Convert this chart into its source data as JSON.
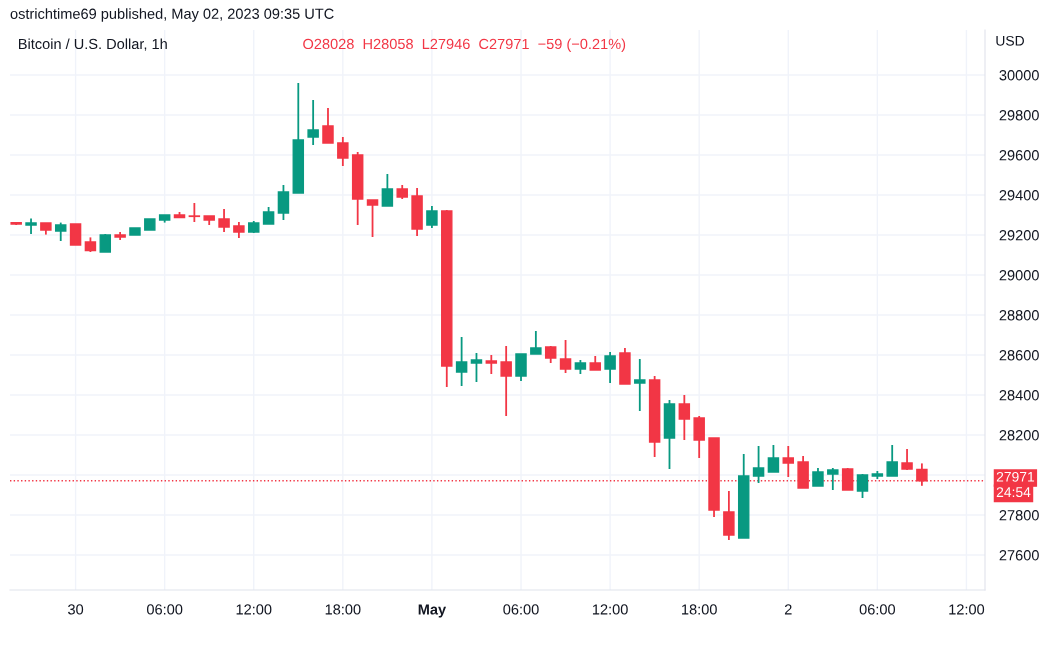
{
  "chart_data": {
    "type": "candlestick",
    "title": "Bitcoin / U.S. Dollar, 1h",
    "subtitle": "O28028  H28058  L27946  C27971  −59 (−0.21%)",
    "ylabel": "USD",
    "annotations": [
      "ostrichtime69 published, May 02, 2023 09:35 UTC",
      "24:54"
    ],
    "x": [
      "2023-04-29T20:00",
      "2023-04-29T21:00",
      "2023-04-29T22:00",
      "2023-04-29T23:00",
      "2023-04-30T00:00",
      "2023-04-30T01:00",
      "2023-04-30T02:00",
      "2023-04-30T03:00",
      "2023-04-30T04:00",
      "2023-04-30T05:00",
      "2023-04-30T06:00",
      "2023-04-30T07:00",
      "2023-04-30T08:00",
      "2023-04-30T09:00",
      "2023-04-30T10:00",
      "2023-04-30T11:00",
      "2023-04-30T12:00",
      "2023-04-30T13:00",
      "2023-04-30T14:00",
      "2023-04-30T15:00",
      "2023-04-30T16:00",
      "2023-04-30T17:00",
      "2023-04-30T18:00",
      "2023-04-30T19:00",
      "2023-04-30T20:00",
      "2023-04-30T21:00",
      "2023-04-30T22:00",
      "2023-04-30T23:00",
      "2023-05-01T00:00",
      "2023-05-01T01:00",
      "2023-05-01T02:00",
      "2023-05-01T03:00",
      "2023-05-01T04:00",
      "2023-05-01T05:00",
      "2023-05-01T06:00",
      "2023-05-01T07:00",
      "2023-05-01T08:00",
      "2023-05-01T09:00",
      "2023-05-01T10:00",
      "2023-05-01T11:00",
      "2023-05-01T12:00",
      "2023-05-01T13:00",
      "2023-05-01T14:00",
      "2023-05-01T15:00",
      "2023-05-01T16:00",
      "2023-05-01T17:00",
      "2023-05-01T18:00",
      "2023-05-01T19:00",
      "2023-05-01T20:00",
      "2023-05-01T21:00",
      "2023-05-01T22:00",
      "2023-05-01T23:00",
      "2023-05-02T00:00",
      "2023-05-02T01:00",
      "2023-05-02T02:00",
      "2023-05-02T03:00",
      "2023-05-02T04:00",
      "2023-05-02T05:00",
      "2023-05-02T06:00",
      "2023-05-02T07:00",
      "2023-05-02T08:00",
      "2023-05-02T09:00"
    ],
    "ohlc": [
      [
        29262,
        29265,
        29250,
        29255
      ],
      [
        29250,
        29283,
        29205,
        29260
      ],
      [
        29260,
        29260,
        29202,
        29225
      ],
      [
        29220,
        29262,
        29170,
        29250
      ],
      [
        29255,
        29255,
        29150,
        29150
      ],
      [
        29165,
        29188,
        29115,
        29122
      ],
      [
        29115,
        29205,
        29115,
        29200
      ],
      [
        29200,
        29215,
        29175,
        29190
      ],
      [
        29200,
        29235,
        29200,
        29235
      ],
      [
        29225,
        29280,
        29225,
        29280
      ],
      [
        29275,
        29300,
        29262,
        29300
      ],
      [
        29300,
        29315,
        29287,
        29287
      ],
      [
        29295,
        29360,
        29265,
        29293
      ],
      [
        29295,
        29295,
        29250,
        29275
      ],
      [
        29280,
        29330,
        29215,
        29240
      ],
      [
        29245,
        29265,
        29185,
        29215
      ],
      [
        29215,
        29270,
        29210,
        29260
      ],
      [
        29255,
        29340,
        29255,
        29315
      ],
      [
        29310,
        29450,
        29275,
        29415
      ],
      [
        29410,
        29960,
        29410,
        29675
      ],
      [
        29690,
        29875,
        29650,
        29725
      ],
      [
        29745,
        29835,
        29660,
        29660
      ],
      [
        29660,
        29690,
        29545,
        29585
      ],
      [
        29600,
        29615,
        29250,
        29380
      ],
      [
        29375,
        29375,
        29190,
        29350
      ],
      [
        29345,
        29505,
        29345,
        29430
      ],
      [
        29430,
        29450,
        29380,
        29390
      ],
      [
        29395,
        29435,
        29195,
        29230
      ],
      [
        29250,
        29345,
        29235,
        29320
      ],
      [
        29320,
        29325,
        28440,
        28545
      ],
      [
        28515,
        28690,
        28445,
        28565
      ],
      [
        28560,
        28610,
        28465,
        28575
      ],
      [
        28570,
        28600,
        28505,
        28560
      ],
      [
        28565,
        28645,
        28295,
        28495
      ],
      [
        28495,
        28605,
        28470,
        28605
      ],
      [
        28605,
        28720,
        28605,
        28635
      ],
      [
        28640,
        28645,
        28560,
        28585
      ],
      [
        28580,
        28675,
        28510,
        28530
      ],
      [
        28530,
        28575,
        28505,
        28560
      ],
      [
        28560,
        28595,
        28525,
        28525
      ],
      [
        28530,
        28615,
        28460,
        28595
      ],
      [
        28610,
        28635,
        28455,
        28455
      ],
      [
        28460,
        28580,
        28320,
        28475
      ],
      [
        28475,
        28495,
        28090,
        28165
      ],
      [
        28185,
        28375,
        28030,
        28355
      ],
      [
        28355,
        28400,
        28175,
        28280
      ],
      [
        28285,
        28295,
        28085,
        28175
      ],
      [
        28185,
        28185,
        27790,
        27825
      ],
      [
        27815,
        27920,
        27675,
        27700
      ],
      [
        27685,
        28105,
        27685,
        27995
      ],
      [
        27995,
        28145,
        27960,
        28035
      ],
      [
        28015,
        28150,
        28015,
        28085
      ],
      [
        28085,
        28145,
        27990,
        28060
      ],
      [
        28065,
        28095,
        27935,
        27935
      ],
      [
        27945,
        28035,
        27945,
        28015
      ],
      [
        28005,
        28035,
        27925,
        28025
      ],
      [
        28030,
        28035,
        27925,
        27925
      ],
      [
        27920,
        28005,
        27885,
        28000
      ],
      [
        27995,
        28020,
        27980,
        28005
      ],
      [
        27995,
        28150,
        27995,
        28065
      ],
      [
        28060,
        28130,
        28025,
        28030
      ],
      [
        28028,
        28058,
        27946,
        27971
      ]
    ],
    "colors": [
      "#f23645",
      "#089981",
      "#f23645",
      "#089981",
      "#f23645",
      "#f23645",
      "#089981",
      "#f23645",
      "#089981",
      "#089981",
      "#089981",
      "#f23645",
      "#f23645",
      "#f23645",
      "#f23645",
      "#f23645",
      "#089981",
      "#089981",
      "#089981",
      "#089981",
      "#089981",
      "#f23645",
      "#f23645",
      "#f23645",
      "#f23645",
      "#089981",
      "#f23645",
      "#f23645",
      "#089981",
      "#f23645",
      "#089981",
      "#089981",
      "#f23645",
      "#f23645",
      "#089981",
      "#089981",
      "#f23645",
      "#f23645",
      "#089981",
      "#f23645",
      "#089981",
      "#f23645",
      "#089981",
      "#f23645",
      "#089981",
      "#f23645",
      "#f23645",
      "#f23645",
      "#f23645",
      "#089981",
      "#089981",
      "#089981",
      "#f23645",
      "#f23645",
      "#089981",
      "#089981",
      "#f23645",
      "#089981",
      "#089981",
      "#089981",
      "#f23645",
      "#f23645"
    ],
    "xlim": [
      "2023-04-29T19:35",
      "2023-05-02T13:15"
    ],
    "xticks": [
      {
        "value": "2023-04-30T00:00",
        "label": "30"
      },
      {
        "value": "2023-04-30T06:00",
        "label": "06:00"
      },
      {
        "value": "2023-04-30T12:00",
        "label": "12:00"
      },
      {
        "value": "2023-04-30T18:00",
        "label": "18:00"
      },
      {
        "value": "2023-05-01T00:00",
        "label": "May"
      },
      {
        "value": "2023-05-01T06:00",
        "label": "06:00"
      },
      {
        "value": "2023-05-01T12:00",
        "label": "12:00"
      },
      {
        "value": "2023-05-01T18:00",
        "label": "18:00"
      },
      {
        "value": "2023-05-02T00:00",
        "label": "2"
      },
      {
        "value": "2023-05-02T06:00",
        "label": "06:00"
      },
      {
        "value": "2023-05-02T12:00",
        "label": "12:00"
      }
    ],
    "ylim": [
      27425,
      30225
    ],
    "yticks": [
      27600,
      27800,
      {
        "value": 28000,
        "label": null
      },
      28200,
      28400,
      28600,
      28800,
      29000,
      29200,
      29400,
      29600,
      29800,
      30000
    ],
    "grid": true,
    "ref_lines": [
      {
        "axis": "y",
        "value": 27971,
        "label": "27971",
        "color": "#f23645",
        "line_style": "dotted"
      }
    ]
  }
}
